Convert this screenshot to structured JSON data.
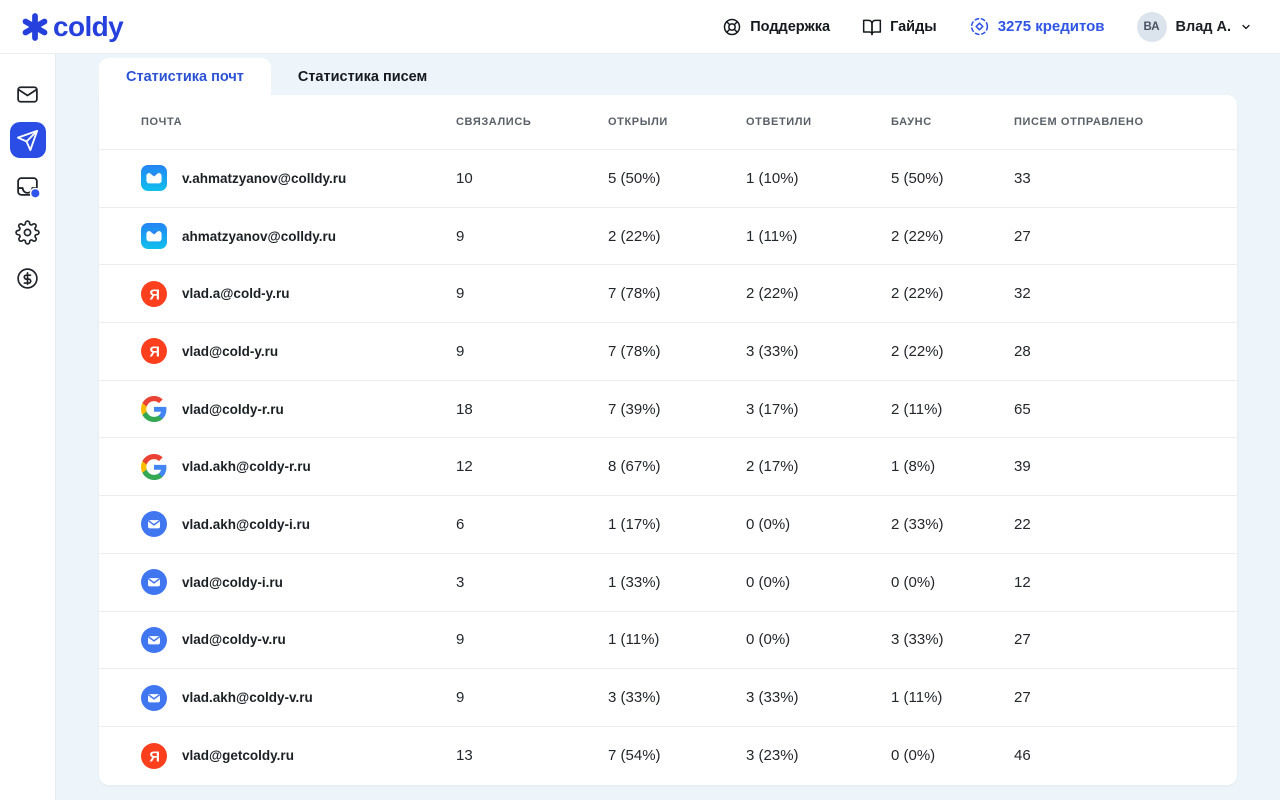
{
  "header": {
    "logo_text": "coldy",
    "support_label": "Поддержка",
    "guides_label": "Гайды",
    "credits_label": "3275 кредитов",
    "avatar_initials": "ВА",
    "user_name": "Влад А."
  },
  "sidebar": {
    "items": [
      {
        "id": "mailboxes",
        "icon": "envelope-icon",
        "active": false
      },
      {
        "id": "campaigns",
        "icon": "send-icon",
        "active": true
      },
      {
        "id": "inbox",
        "icon": "inbox-icon",
        "active": false,
        "badge": true
      },
      {
        "id": "settings",
        "icon": "gear-icon",
        "active": false
      },
      {
        "id": "billing",
        "icon": "dollar-icon",
        "active": false
      }
    ]
  },
  "tabs": [
    {
      "label": "Статистика почт",
      "active": true
    },
    {
      "label": "Статистика писем",
      "active": false
    }
  ],
  "table": {
    "columns": [
      "ПОЧТА",
      "СВЯЗАЛИСЬ",
      "ОТКРЫЛИ",
      "ОТВЕТИЛИ",
      "БАУНС",
      "ПИСЕМ ОТПРАВЛЕНО"
    ],
    "rows": [
      {
        "provider": "mailru",
        "email": "v.ahmatzyanov@colldy.ru",
        "contacted": "10",
        "opened": "5 (50%)",
        "replied": "1 (10%)",
        "bounced": "5 (50%)",
        "sent": "33"
      },
      {
        "provider": "mailru",
        "email": "ahmatzyanov@colldy.ru",
        "contacted": "9",
        "opened": "2 (22%)",
        "replied": "1 (11%)",
        "bounced": "2 (22%)",
        "sent": "27"
      },
      {
        "provider": "yandex",
        "email": "vlad.a@cold-y.ru",
        "contacted": "9",
        "opened": "7 (78%)",
        "replied": "2 (22%)",
        "bounced": "2 (22%)",
        "sent": "32"
      },
      {
        "provider": "yandex",
        "email": "vlad@cold-y.ru",
        "contacted": "9",
        "opened": "7 (78%)",
        "replied": "3 (33%)",
        "bounced": "2 (22%)",
        "sent": "28"
      },
      {
        "provider": "google",
        "email": "vlad@coldy-r.ru",
        "contacted": "18",
        "opened": "7 (39%)",
        "replied": "3 (17%)",
        "bounced": "2 (11%)",
        "sent": "65"
      },
      {
        "provider": "google",
        "email": "vlad.akh@coldy-r.ru",
        "contacted": "12",
        "opened": "8 (67%)",
        "replied": "2 (17%)",
        "bounced": "1 (8%)",
        "sent": "39"
      },
      {
        "provider": "email",
        "email": "vlad.akh@coldy-i.ru",
        "contacted": "6",
        "opened": "1 (17%)",
        "replied": "0 (0%)",
        "bounced": "2 (33%)",
        "sent": "22"
      },
      {
        "provider": "email",
        "email": "vlad@coldy-i.ru",
        "contacted": "3",
        "opened": "1 (33%)",
        "replied": "0 (0%)",
        "bounced": "0 (0%)",
        "sent": "12"
      },
      {
        "provider": "email",
        "email": "vlad@coldy-v.ru",
        "contacted": "9",
        "opened": "1 (11%)",
        "replied": "0 (0%)",
        "bounced": "3 (33%)",
        "sent": "27"
      },
      {
        "provider": "email",
        "email": "vlad.akh@coldy-v.ru",
        "contacted": "9",
        "opened": "3 (33%)",
        "replied": "3 (33%)",
        "bounced": "1 (11%)",
        "sent": "27"
      },
      {
        "provider": "yandex",
        "email": "vlad@getcoldy.ru",
        "contacted": "13",
        "opened": "7 (54%)",
        "replied": "3 (23%)",
        "bounced": "0 (0%)",
        "sent": "46"
      }
    ]
  },
  "colors": {
    "accent": "#2a4ee5",
    "logo": "#2540dc",
    "credits_text": "#2f55e5",
    "tab_active_text": "#2a52d4",
    "content_bg": "#edf5fa",
    "yandex_red": "#fc3f1d",
    "email_circle_blue": "#4176f1",
    "mailru_gradient_top": "#2384f5",
    "mailru_gradient_bottom": "#10c0ec",
    "badge_dot": "#2f54eb"
  }
}
